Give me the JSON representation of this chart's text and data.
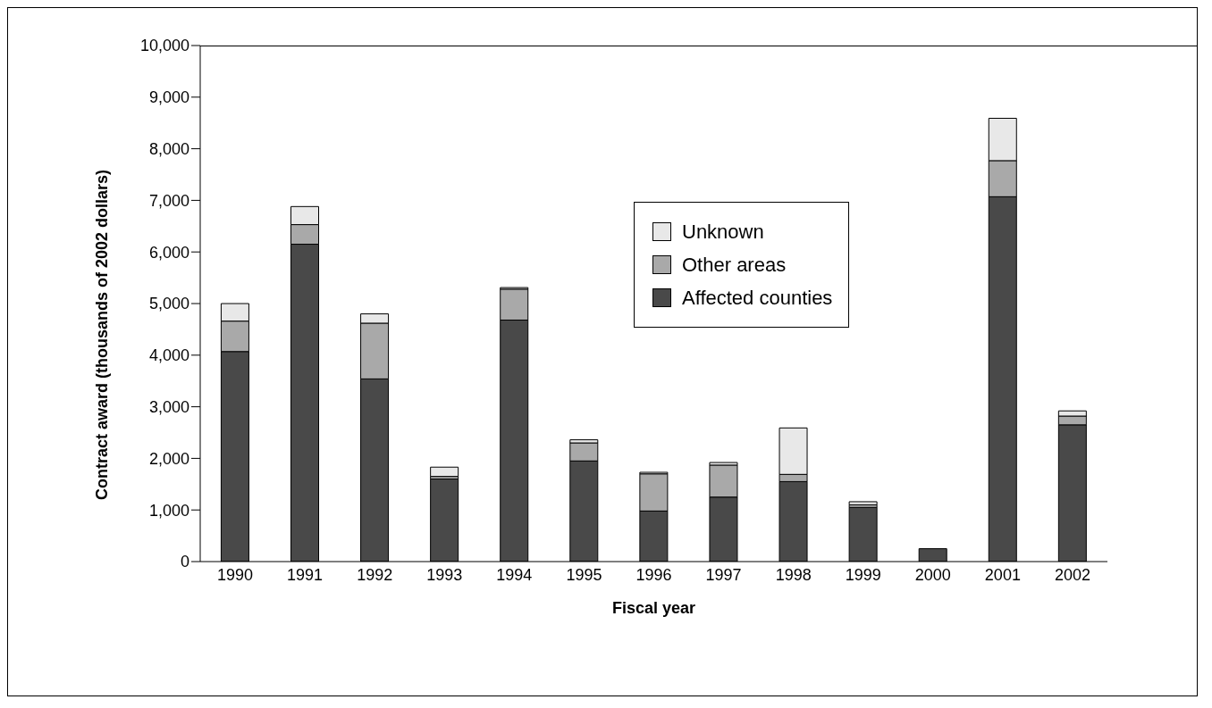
{
  "chart_data": {
    "type": "bar",
    "stacked": true,
    "xlabel": "Fiscal year",
    "ylabel": "Contract award (thousands of 2002 dollars)",
    "categories": [
      "1990",
      "1991",
      "1992",
      "1993",
      "1994",
      "1995",
      "1996",
      "1997",
      "1998",
      "1999",
      "2000",
      "2001",
      "2002"
    ],
    "series": [
      {
        "name": "Affected counties",
        "color": "#494949",
        "values": [
          4070,
          6150,
          3540,
          1600,
          4680,
          1950,
          980,
          1250,
          1550,
          1050,
          250,
          7070,
          2650
        ]
      },
      {
        "name": "Other areas",
        "color": "#a9a9a9",
        "values": [
          590,
          380,
          1080,
          50,
          600,
          350,
          720,
          620,
          140,
          50,
          null,
          700,
          170
        ]
      },
      {
        "name": "Unknown",
        "color": "#e8e8e8",
        "values": [
          340,
          350,
          180,
          180,
          30,
          60,
          30,
          50,
          900,
          60,
          null,
          820,
          100
        ]
      }
    ],
    "ylim": [
      0,
      10000
    ],
    "yticks": [
      {
        "value": 0,
        "label": "0"
      },
      {
        "value": 1000,
        "label": "1,000"
      },
      {
        "value": 2000,
        "label": "2,000"
      },
      {
        "value": 3000,
        "label": "3,000"
      },
      {
        "value": 4000,
        "label": "4,000"
      },
      {
        "value": 5000,
        "label": "5,000"
      },
      {
        "value": 6000,
        "label": "6,000"
      },
      {
        "value": 7000,
        "label": "7,000"
      },
      {
        "value": 8000,
        "label": "8,000"
      },
      {
        "value": 9000,
        "label": "9,000"
      },
      {
        "value": 10000,
        "label": "10,000"
      }
    ],
    "legend": "top",
    "grid": false
  }
}
